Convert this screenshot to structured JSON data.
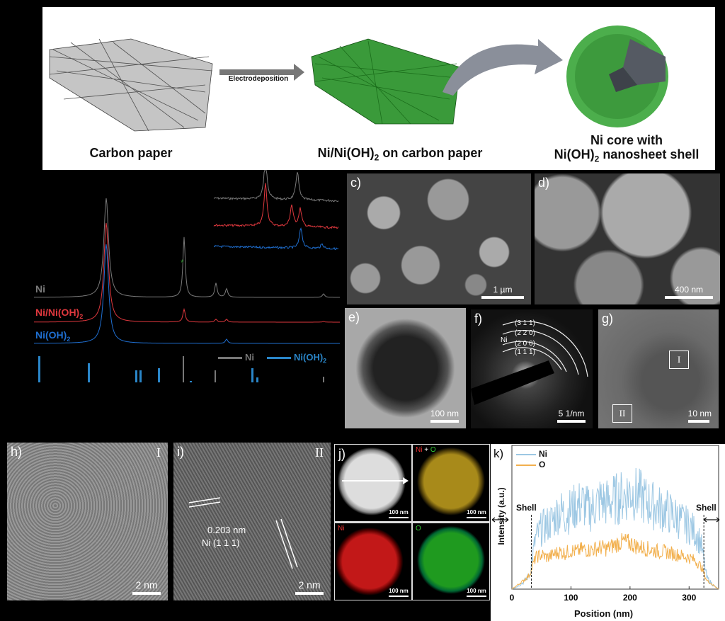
{
  "schematic": {
    "carbon_paper": "Carbon paper",
    "arrow_label": "Electrodeposition",
    "deposit_label_main": "Ni/Ni(OH)",
    "deposit_label_sub": "2",
    "deposit_label_tail": " on carbon paper",
    "core_line1": "Ni core with",
    "core_line2_main": "Ni(OH)",
    "core_line2_sub": "2",
    "core_line2_tail": " nanosheet shell"
  },
  "xrd": {
    "series": [
      {
        "name": "Ni",
        "color": "#7a7a7a"
      },
      {
        "name_main": "Ni/Ni(OH)",
        "name_sub": "2",
        "color": "#e0383e"
      },
      {
        "name_main": "Ni(OH)",
        "name_sub": "2",
        "color": "#1f6fd1"
      }
    ],
    "reference_legend": {
      "ni": "Ni",
      "nioh_main": "Ni(OH)",
      "nioh_sub": "2"
    },
    "marker": "*"
  },
  "panels": {
    "c": {
      "label": "c)",
      "scale": "1 µm"
    },
    "d": {
      "label": "d)",
      "scale": "400 nm"
    },
    "e": {
      "label": "e)",
      "scale": "100 nm"
    },
    "f": {
      "label": "f)",
      "scale": "5 1/nm",
      "phase": "Ni",
      "rings": [
        "(3 1 1)",
        "(2 2 0)",
        "(2 0 0)",
        "(1 1 1)"
      ]
    },
    "g": {
      "label": "g)",
      "scale": "10 nm",
      "box1": "I",
      "box2": "II"
    },
    "h": {
      "label": "h)",
      "scale": "2 nm",
      "region": "I"
    },
    "i": {
      "label": "i)",
      "scale": "2 nm",
      "region": "II",
      "spacing": "0.203 nm",
      "plane": "Ni (1 1 1)"
    },
    "j": {
      "label": "j)",
      "scale": "100 nm",
      "ni": "Ni",
      "plus": "+",
      "o": "O"
    }
  },
  "chart_data": {
    "type": "line",
    "panel_label": "k)",
    "xlabel": "Position (nm)",
    "ylabel": "Intensity (a.u.)",
    "xlim": [
      0,
      350
    ],
    "xticks": [
      0,
      100,
      200,
      300
    ],
    "legend": "top-left",
    "annotations": [
      "Shell",
      "Shell"
    ],
    "shell_boundaries": [
      33,
      325
    ],
    "x": [
      0,
      10,
      20,
      30,
      40,
      50,
      60,
      70,
      80,
      90,
      100,
      110,
      120,
      130,
      140,
      150,
      160,
      170,
      180,
      190,
      200,
      210,
      220,
      230,
      240,
      250,
      260,
      270,
      280,
      290,
      300,
      310,
      320,
      330,
      340,
      350
    ],
    "series": [
      {
        "name": "Ni",
        "color": "#9cc7e3",
        "values": [
          0,
          2,
          5,
          10,
          35,
          42,
          45,
          48,
          55,
          52,
          55,
          58,
          60,
          55,
          58,
          62,
          60,
          62,
          63,
          65,
          68,
          66,
          64,
          60,
          58,
          56,
          55,
          52,
          50,
          46,
          44,
          40,
          32,
          8,
          3,
          0
        ]
      },
      {
        "name": "O",
        "color": "#f2b04e",
        "values": [
          0,
          3,
          6,
          10,
          22,
          24,
          22,
          24,
          26,
          25,
          27,
          26,
          28,
          27,
          28,
          29,
          28,
          30,
          32,
          33,
          32,
          30,
          29,
          28,
          27,
          26,
          26,
          25,
          24,
          23,
          22,
          20,
          16,
          6,
          3,
          0
        ]
      }
    ]
  }
}
